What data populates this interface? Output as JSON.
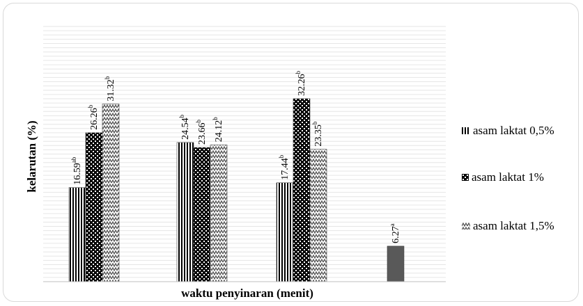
{
  "chart_data": {
    "type": "bar",
    "title": "",
    "xlabel": "waktu penyinaran (menit)",
    "ylabel": "kelarutan (%)",
    "categories": [
      "",
      "",
      "",
      ""
    ],
    "ylim": [
      0,
      45
    ],
    "grid": true,
    "legend_position": "right",
    "series": [
      {
        "name": "asam laktat 0,5%",
        "pattern": "vertical-stripes",
        "color": "#000000",
        "values": [
          16.59,
          24.54,
          17.44,
          null
        ],
        "labels": [
          "16.59ab",
          "24.54b",
          "17.44b",
          ""
        ]
      },
      {
        "name": "asam laktat 1%",
        "pattern": "checker",
        "color": "#000000",
        "values": [
          26.26,
          23.66,
          32.26,
          6.27
        ],
        "labels": [
          "26.26b",
          "23.66b",
          "32.26b",
          "6.27a"
        ]
      },
      {
        "name": "asam laktat 1,5%",
        "pattern": "zigzag",
        "color": "#000000",
        "values": [
          31.32,
          24.12,
          23.35,
          null
        ],
        "labels": [
          "31.32b",
          "24.12b",
          "23.35b",
          ""
        ]
      }
    ]
  }
}
